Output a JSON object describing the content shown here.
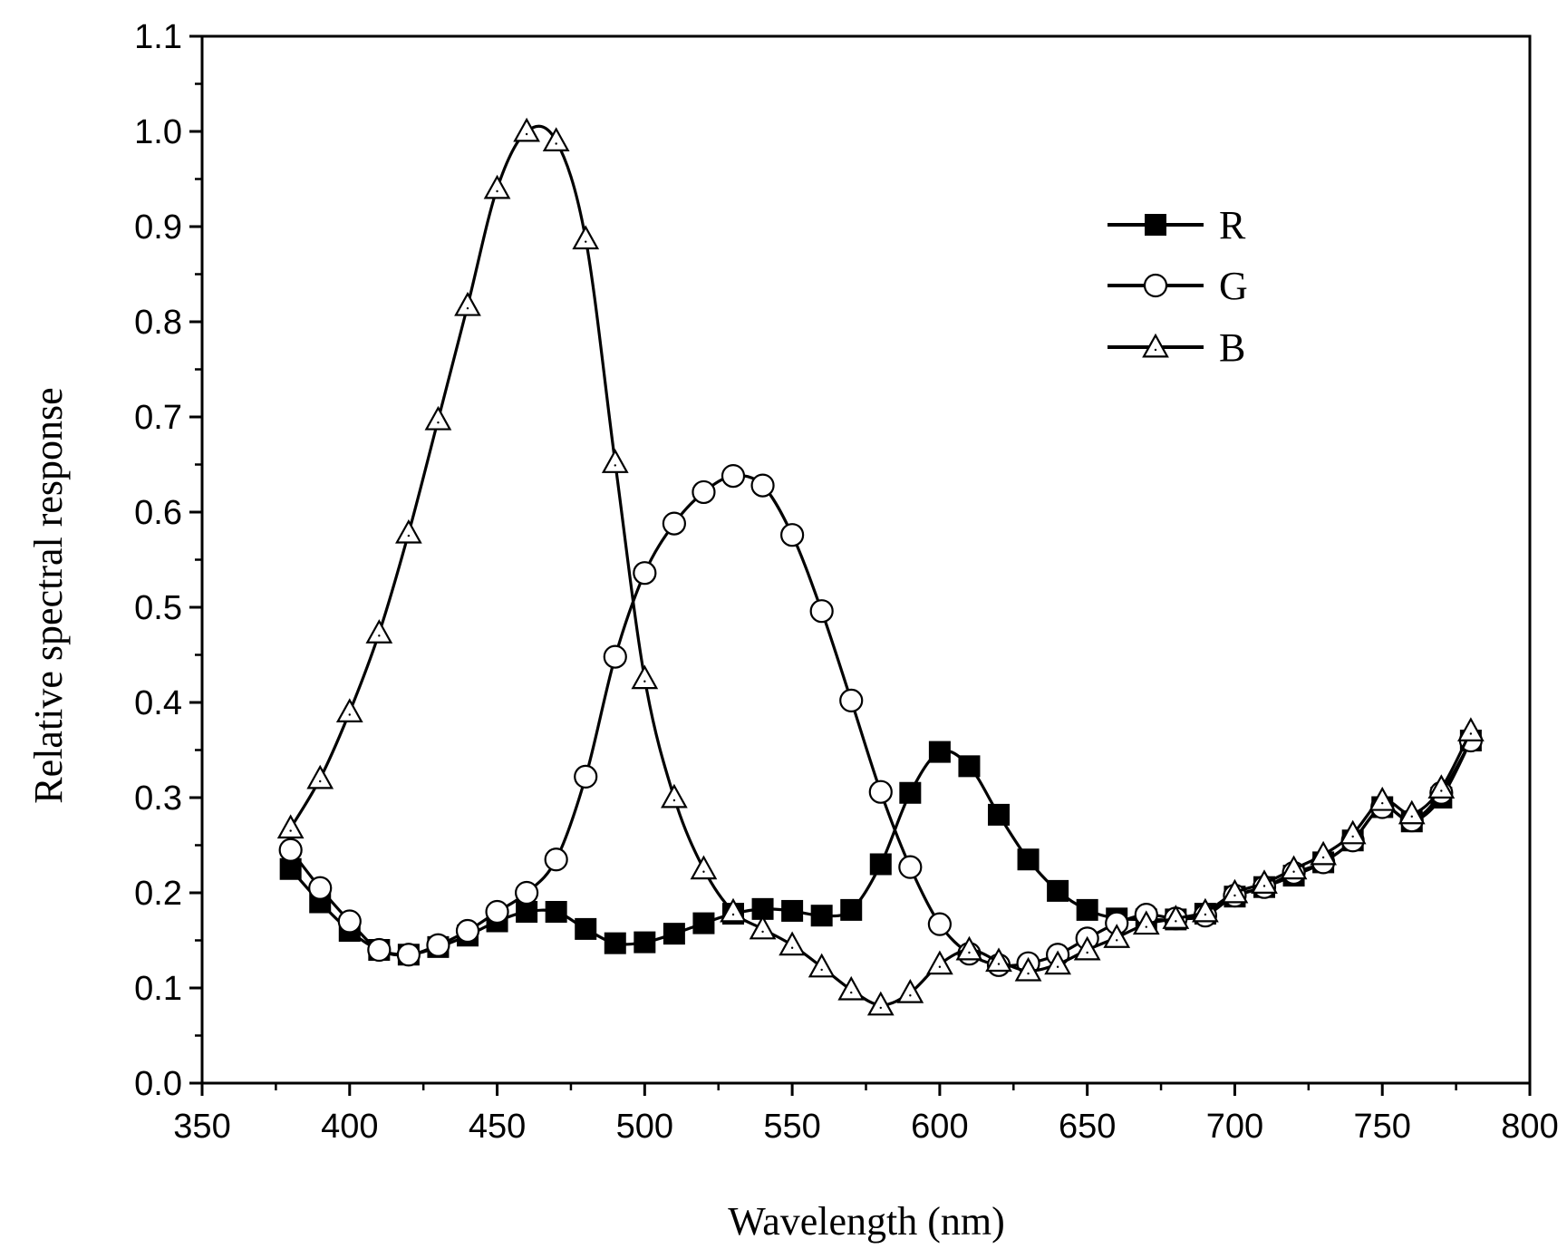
{
  "chart_data": {
    "type": "line",
    "title": "",
    "xlabel": "Wavelength (nm)",
    "ylabel": "Relative spectral response",
    "xlim": [
      350,
      800
    ],
    "ylim": [
      0.0,
      1.1
    ],
    "x_ticks": [
      "350",
      "400",
      "450",
      "500",
      "550",
      "600",
      "650",
      "700",
      "750",
      "800"
    ],
    "y_ticks": [
      "0.0",
      "0.1",
      "0.2",
      "0.3",
      "0.4",
      "0.5",
      "0.6",
      "0.7",
      "0.8",
      "0.9",
      "1.0",
      "1.1"
    ],
    "grid": false,
    "legend_position": "top-right",
    "x": [
      380,
      390,
      400,
      410,
      420,
      430,
      440,
      450,
      460,
      470,
      480,
      490,
      500,
      510,
      520,
      530,
      540,
      550,
      560,
      570,
      580,
      590,
      600,
      610,
      620,
      630,
      640,
      650,
      660,
      670,
      680,
      690,
      700,
      710,
      720,
      730,
      740,
      750,
      760,
      770,
      780
    ],
    "series": [
      {
        "name": "R",
        "marker": "filled-square",
        "values": [
          0.225,
          0.19,
          0.16,
          0.14,
          0.135,
          0.143,
          0.155,
          0.17,
          0.18,
          0.18,
          0.162,
          0.147,
          0.148,
          0.157,
          0.168,
          0.178,
          0.183,
          0.181,
          0.176,
          0.182,
          0.23,
          0.305,
          0.348,
          0.333,
          0.282,
          0.235,
          0.202,
          0.182,
          0.173,
          0.172,
          0.172,
          0.178,
          0.196,
          0.206,
          0.218,
          0.232,
          0.255,
          0.29,
          0.275,
          0.3,
          0.36
        ]
      },
      {
        "name": "G",
        "marker": "open-circle",
        "values": [
          0.245,
          0.205,
          0.17,
          0.14,
          0.135,
          0.145,
          0.16,
          0.18,
          0.2,
          0.235,
          0.322,
          0.448,
          0.536,
          0.588,
          0.621,
          0.638,
          0.628,
          0.576,
          0.496,
          0.402,
          0.306,
          0.227,
          0.167,
          0.136,
          0.124,
          0.126,
          0.135,
          0.152,
          0.168,
          0.177,
          0.173,
          0.176,
          0.197,
          0.206,
          0.221,
          0.232,
          0.255,
          0.29,
          0.276,
          0.305,
          0.36
        ]
      },
      {
        "name": "B",
        "marker": "open-triangle",
        "values": [
          0.268,
          0.32,
          0.39,
          0.473,
          0.578,
          0.697,
          0.817,
          0.94,
          1.0,
          0.99,
          0.887,
          0.652,
          0.425,
          0.3,
          0.225,
          0.18,
          0.162,
          0.145,
          0.122,
          0.098,
          0.082,
          0.095,
          0.125,
          0.14,
          0.128,
          0.118,
          0.125,
          0.14,
          0.153,
          0.167,
          0.173,
          0.18,
          0.2,
          0.21,
          0.225,
          0.24,
          0.262,
          0.297,
          0.283,
          0.31,
          0.37
        ]
      }
    ]
  }
}
